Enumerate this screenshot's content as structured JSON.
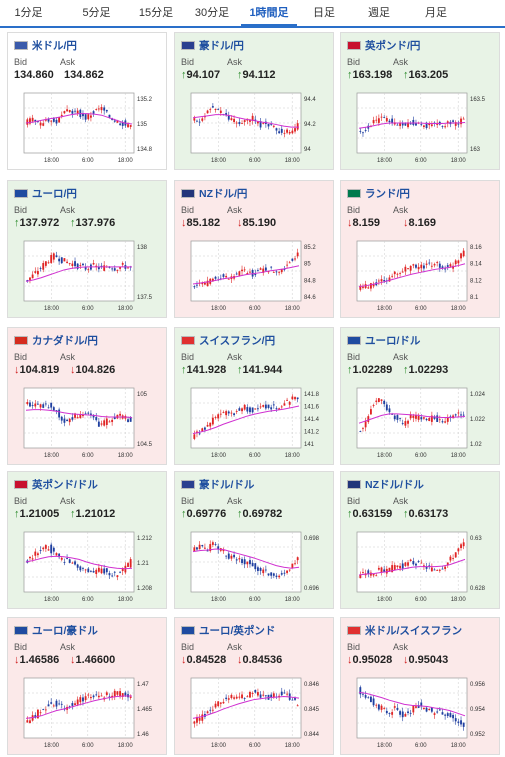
{
  "tabs": [
    {
      "label": "1分足",
      "x": 0,
      "w": 57
    },
    {
      "label": "5分足",
      "x": 68,
      "w": 57
    },
    {
      "label": "15分足",
      "x": 131,
      "w": 50
    },
    {
      "label": "30分足",
      "x": 187,
      "w": 50
    },
    {
      "label": "1時間足",
      "x": 241,
      "w": 56
    },
    {
      "label": "日足",
      "x": 302,
      "w": 44
    },
    {
      "label": "週足",
      "x": 357,
      "w": 44
    },
    {
      "label": "月足",
      "x": 414,
      "w": 44
    }
  ],
  "active_tab": 4,
  "labels": {
    "bid": "Bid",
    "ask": "Ask"
  },
  "x_ticks": [
    "18:00",
    "6:00",
    "18:00"
  ],
  "pairs": [
    {
      "name": "米ドル/円",
      "bid": "134.860",
      "ask": "134.862",
      "dir": "flat",
      "flag": "us",
      "yticks": [
        "135.2",
        "135",
        "134.8"
      ],
      "trend": [
        0.5,
        0.55,
        0.45,
        0.6,
        0.5,
        0.65,
        0.75,
        0.7,
        0.6,
        0.7,
        0.8,
        0.65,
        0.55,
        0.5,
        0.4
      ],
      "ma": [
        0.5,
        0.52,
        0.55,
        0.58,
        0.6,
        0.63,
        0.66,
        0.68,
        0.68,
        0.67,
        0.65,
        0.6,
        0.55,
        0.5,
        0.48
      ]
    },
    {
      "name": "豪ドル/円",
      "bid": "94.107",
      "ask": "94.112",
      "dir": "up",
      "flag": "au",
      "yticks": [
        "94.4",
        "94.2",
        "94"
      ],
      "trend": [
        0.6,
        0.5,
        0.75,
        0.8,
        0.7,
        0.6,
        0.5,
        0.55,
        0.6,
        0.45,
        0.5,
        0.4,
        0.3,
        0.35,
        0.45
      ],
      "ma": [
        0.6,
        0.62,
        0.64,
        0.66,
        0.66,
        0.64,
        0.6,
        0.57,
        0.55,
        0.52,
        0.5,
        0.47,
        0.44,
        0.42,
        0.42
      ]
    },
    {
      "name": "英ポンド/円",
      "bid": "163.198",
      "ask": "163.205",
      "dir": "up",
      "flag": "gb",
      "yticks": [
        "163.5",
        "163"
      ],
      "trend": [
        0.3,
        0.4,
        0.5,
        0.6,
        0.55,
        0.5,
        0.45,
        0.5,
        0.5,
        0.45,
        0.5,
        0.45,
        0.5,
        0.5,
        0.55
      ],
      "ma": [
        0.4,
        0.42,
        0.45,
        0.48,
        0.5,
        0.5,
        0.5,
        0.5,
        0.5,
        0.49,
        0.49,
        0.49,
        0.5,
        0.5,
        0.51
      ]
    },
    {
      "name": "ユーロ/円",
      "bid": "137.972",
      "ask": "137.976",
      "dir": "up",
      "flag": "eu",
      "yticks": [
        "138",
        "137.5"
      ],
      "trend": [
        0.3,
        0.4,
        0.55,
        0.7,
        0.8,
        0.7,
        0.65,
        0.6,
        0.55,
        0.6,
        0.55,
        0.6,
        0.55,
        0.6,
        0.55
      ],
      "ma": [
        0.3,
        0.33,
        0.37,
        0.42,
        0.47,
        0.52,
        0.55,
        0.57,
        0.58,
        0.58,
        0.58,
        0.58,
        0.58,
        0.58,
        0.58
      ]
    },
    {
      "name": "NZドル/円",
      "bid": "85.182",
      "ask": "85.190",
      "dir": "down",
      "flag": "nz",
      "yticks": [
        "85.2",
        "85",
        "84.8",
        "84.6"
      ],
      "trend": [
        0.2,
        0.3,
        0.25,
        0.35,
        0.4,
        0.35,
        0.45,
        0.5,
        0.45,
        0.5,
        0.55,
        0.5,
        0.55,
        0.7,
        0.85
      ],
      "ma": [
        0.25,
        0.27,
        0.29,
        0.32,
        0.35,
        0.37,
        0.4,
        0.43,
        0.45,
        0.47,
        0.5,
        0.52,
        0.54,
        0.57,
        0.6
      ]
    },
    {
      "name": "ランド/円",
      "bid": "8.159",
      "ask": "8.169",
      "dir": "down",
      "flag": "za",
      "yticks": [
        "8.16",
        "8.14",
        "8.12",
        "8.1"
      ],
      "trend": [
        0.15,
        0.2,
        0.25,
        0.3,
        0.35,
        0.45,
        0.5,
        0.6,
        0.55,
        0.6,
        0.65,
        0.6,
        0.55,
        0.7,
        0.9
      ],
      "ma": [
        0.2,
        0.22,
        0.25,
        0.28,
        0.32,
        0.36,
        0.4,
        0.44,
        0.47,
        0.5,
        0.53,
        0.55,
        0.57,
        0.6,
        0.64
      ]
    },
    {
      "name": "カナダドル/円",
      "bid": "104.819",
      "ask": "104.826",
      "dir": "down",
      "flag": "ca",
      "yticks": [
        "105",
        "104.5"
      ],
      "trend": [
        0.8,
        0.75,
        0.7,
        0.75,
        0.65,
        0.45,
        0.5,
        0.55,
        0.6,
        0.5,
        0.35,
        0.45,
        0.55,
        0.5,
        0.45
      ],
      "ma": [
        0.65,
        0.66,
        0.66,
        0.65,
        0.63,
        0.6,
        0.58,
        0.57,
        0.56,
        0.55,
        0.53,
        0.52,
        0.52,
        0.52,
        0.51
      ]
    },
    {
      "name": "スイスフラン/円",
      "bid": "141.928",
      "ask": "141.944",
      "dir": "up",
      "flag": "ch",
      "yticks": [
        "141.8",
        "141.6",
        "141.4",
        "141.2",
        "141"
      ],
      "trend": [
        0.15,
        0.25,
        0.35,
        0.5,
        0.6,
        0.55,
        0.65,
        0.7,
        0.65,
        0.7,
        0.75,
        0.7,
        0.75,
        0.85,
        0.9
      ],
      "ma": [
        0.2,
        0.23,
        0.27,
        0.32,
        0.38,
        0.43,
        0.48,
        0.53,
        0.57,
        0.6,
        0.63,
        0.65,
        0.67,
        0.7,
        0.73
      ]
    },
    {
      "name": "ユーロ/ドル",
      "bid": "1.02289",
      "ask": "1.02293",
      "dir": "up",
      "flag": "eu",
      "yticks": [
        "1.024",
        "1.022",
        "1.02"
      ],
      "trend": [
        0.2,
        0.4,
        0.8,
        0.85,
        0.6,
        0.5,
        0.4,
        0.55,
        0.5,
        0.45,
        0.5,
        0.45,
        0.5,
        0.55,
        0.6
      ],
      "ma": [
        0.4,
        0.45,
        0.5,
        0.55,
        0.58,
        0.58,
        0.57,
        0.56,
        0.55,
        0.53,
        0.52,
        0.51,
        0.51,
        0.52,
        0.53
      ]
    },
    {
      "name": "英ポンド/ドル",
      "bid": "1.21005",
      "ask": "1.21012",
      "dir": "up",
      "flag": "gb",
      "yticks": [
        "1.212",
        "1.21",
        "1.208"
      ],
      "trend": [
        0.5,
        0.6,
        0.7,
        0.8,
        0.65,
        0.55,
        0.5,
        0.4,
        0.35,
        0.3,
        0.35,
        0.3,
        0.25,
        0.35,
        0.5
      ],
      "ma": [
        0.5,
        0.53,
        0.57,
        0.6,
        0.61,
        0.6,
        0.58,
        0.55,
        0.5,
        0.46,
        0.43,
        0.4,
        0.38,
        0.37,
        0.38
      ]
    },
    {
      "name": "豪ドル/ドル",
      "bid": "0.69776",
      "ask": "0.69782",
      "dir": "up",
      "flag": "au",
      "yticks": [
        "0.698",
        "0.696"
      ],
      "trend": [
        0.7,
        0.8,
        0.75,
        0.85,
        0.7,
        0.6,
        0.55,
        0.5,
        0.45,
        0.35,
        0.3,
        0.25,
        0.3,
        0.4,
        0.55
      ],
      "ma": [
        0.7,
        0.72,
        0.73,
        0.75,
        0.74,
        0.7,
        0.66,
        0.62,
        0.58,
        0.53,
        0.48,
        0.43,
        0.4,
        0.38,
        0.4
      ]
    },
    {
      "name": "NZドル/ドル",
      "bid": "0.63159",
      "ask": "0.63173",
      "dir": "up",
      "flag": "nz",
      "yticks": [
        "0.63",
        "0.628"
      ],
      "trend": [
        0.2,
        0.3,
        0.25,
        0.35,
        0.3,
        0.45,
        0.4,
        0.5,
        0.45,
        0.4,
        0.35,
        0.4,
        0.5,
        0.7,
        0.85
      ],
      "ma": [
        0.25,
        0.27,
        0.28,
        0.3,
        0.32,
        0.35,
        0.37,
        0.4,
        0.41,
        0.41,
        0.41,
        0.42,
        0.45,
        0.5,
        0.55
      ]
    },
    {
      "name": "ユーロ/豪ドル",
      "bid": "1.46586",
      "ask": "1.46600",
      "dir": "down",
      "flag": "eu",
      "yticks": [
        "1.47",
        "1.465",
        "1.46"
      ],
      "trend": [
        0.25,
        0.3,
        0.45,
        0.55,
        0.6,
        0.5,
        0.55,
        0.65,
        0.7,
        0.75,
        0.7,
        0.75,
        0.8,
        0.75,
        0.7
      ],
      "ma": [
        0.3,
        0.32,
        0.35,
        0.4,
        0.45,
        0.48,
        0.52,
        0.56,
        0.6,
        0.64,
        0.67,
        0.7,
        0.72,
        0.73,
        0.73
      ]
    },
    {
      "name": "ユーロ/英ポンド",
      "bid": "0.84528",
      "ask": "0.84536",
      "dir": "down",
      "flag": "eu",
      "yticks": [
        "0.846",
        "0.845",
        "0.844"
      ],
      "trend": [
        0.25,
        0.3,
        0.4,
        0.55,
        0.65,
        0.7,
        0.75,
        0.7,
        0.8,
        0.75,
        0.7,
        0.75,
        0.8,
        0.7,
        0.55
      ],
      "ma": [
        0.3,
        0.33,
        0.37,
        0.42,
        0.48,
        0.53,
        0.58,
        0.62,
        0.66,
        0.68,
        0.7,
        0.71,
        0.72,
        0.71,
        0.69
      ]
    },
    {
      "name": "米ドル/スイスフラン",
      "bid": "0.95028",
      "ask": "0.95043",
      "dir": "down",
      "flag": "ch",
      "yticks": [
        "0.956",
        "0.954",
        "0.952"
      ],
      "trend": [
        0.85,
        0.75,
        0.6,
        0.5,
        0.4,
        0.5,
        0.35,
        0.45,
        0.55,
        0.5,
        0.4,
        0.45,
        0.35,
        0.25,
        0.15
      ],
      "ma": [
        0.8,
        0.78,
        0.74,
        0.7,
        0.65,
        0.61,
        0.57,
        0.55,
        0.54,
        0.53,
        0.5,
        0.48,
        0.45,
        0.4,
        0.35
      ]
    }
  ]
}
